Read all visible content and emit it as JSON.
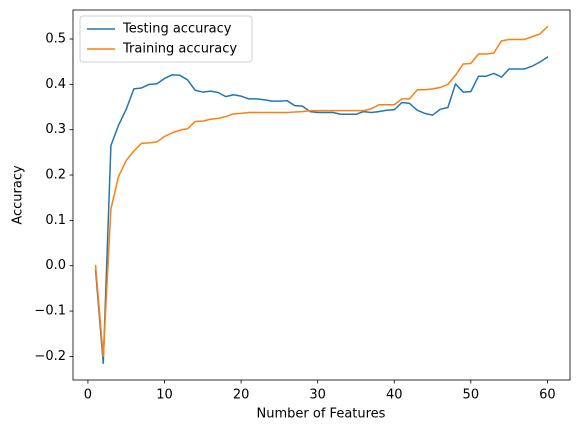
{
  "chart_data": {
    "type": "line",
    "x_label": "Number of Features",
    "y_label": "Accuracy",
    "x": [
      1,
      2,
      3,
      4,
      5,
      6,
      7,
      8,
      9,
      10,
      11,
      12,
      13,
      14,
      15,
      16,
      17,
      18,
      19,
      20,
      21,
      22,
      23,
      24,
      25,
      26,
      27,
      28,
      29,
      30,
      31,
      32,
      33,
      34,
      35,
      36,
      37,
      38,
      39,
      40,
      41,
      42,
      43,
      44,
      45,
      46,
      47,
      48,
      49,
      50,
      51,
      52,
      53,
      54,
      55,
      56,
      57,
      58,
      59,
      60
    ],
    "series": [
      {
        "name": "Testing accuracy",
        "color": "#1f77b4",
        "values": [
          -0.01,
          -0.215,
          0.265,
          0.31,
          0.345,
          0.39,
          0.392,
          0.4,
          0.401,
          0.413,
          0.421,
          0.42,
          0.41,
          0.387,
          0.383,
          0.385,
          0.382,
          0.373,
          0.377,
          0.374,
          0.368,
          0.368,
          0.366,
          0.363,
          0.363,
          0.364,
          0.353,
          0.352,
          0.34,
          0.338,
          0.338,
          0.338,
          0.334,
          0.334,
          0.334,
          0.34,
          0.338,
          0.34,
          0.343,
          0.344,
          0.36,
          0.358,
          0.343,
          0.336,
          0.332,
          0.345,
          0.349,
          0.401,
          0.383,
          0.384,
          0.418,
          0.418,
          0.424,
          0.416,
          0.434,
          0.434,
          0.434,
          0.44,
          0.449,
          0.46
        ]
      },
      {
        "name": "Training accuracy",
        "color": "#ff7f0e",
        "values": [
          0.0,
          -0.2,
          0.125,
          0.197,
          0.232,
          0.253,
          0.27,
          0.271,
          0.273,
          0.285,
          0.293,
          0.299,
          0.302,
          0.318,
          0.319,
          0.323,
          0.325,
          0.329,
          0.335,
          0.336,
          0.338,
          0.338,
          0.338,
          0.338,
          0.338,
          0.338,
          0.339,
          0.34,
          0.342,
          0.342,
          0.342,
          0.342,
          0.342,
          0.342,
          0.342,
          0.342,
          0.346,
          0.355,
          0.355,
          0.355,
          0.368,
          0.368,
          0.388,
          0.388,
          0.39,
          0.393,
          0.4,
          0.42,
          0.445,
          0.446,
          0.467,
          0.467,
          0.469,
          0.496,
          0.499,
          0.499,
          0.499,
          0.505,
          0.511,
          0.527
        ]
      }
    ],
    "xlim": [
      -1.95,
      62.95
    ],
    "xticks": [
      0,
      10,
      20,
      30,
      40,
      50,
      60
    ],
    "ylim": [
      -0.252,
      0.564
    ],
    "yticks": [
      {
        "value": -0.2,
        "label": "−0.2"
      },
      {
        "value": -0.1,
        "label": "−0.1"
      },
      {
        "value": 0,
        "label": "0.0"
      },
      0.1,
      0.2,
      0.3,
      0.4,
      0.5
    ],
    "legend": "upper left",
    "grid": false
  }
}
